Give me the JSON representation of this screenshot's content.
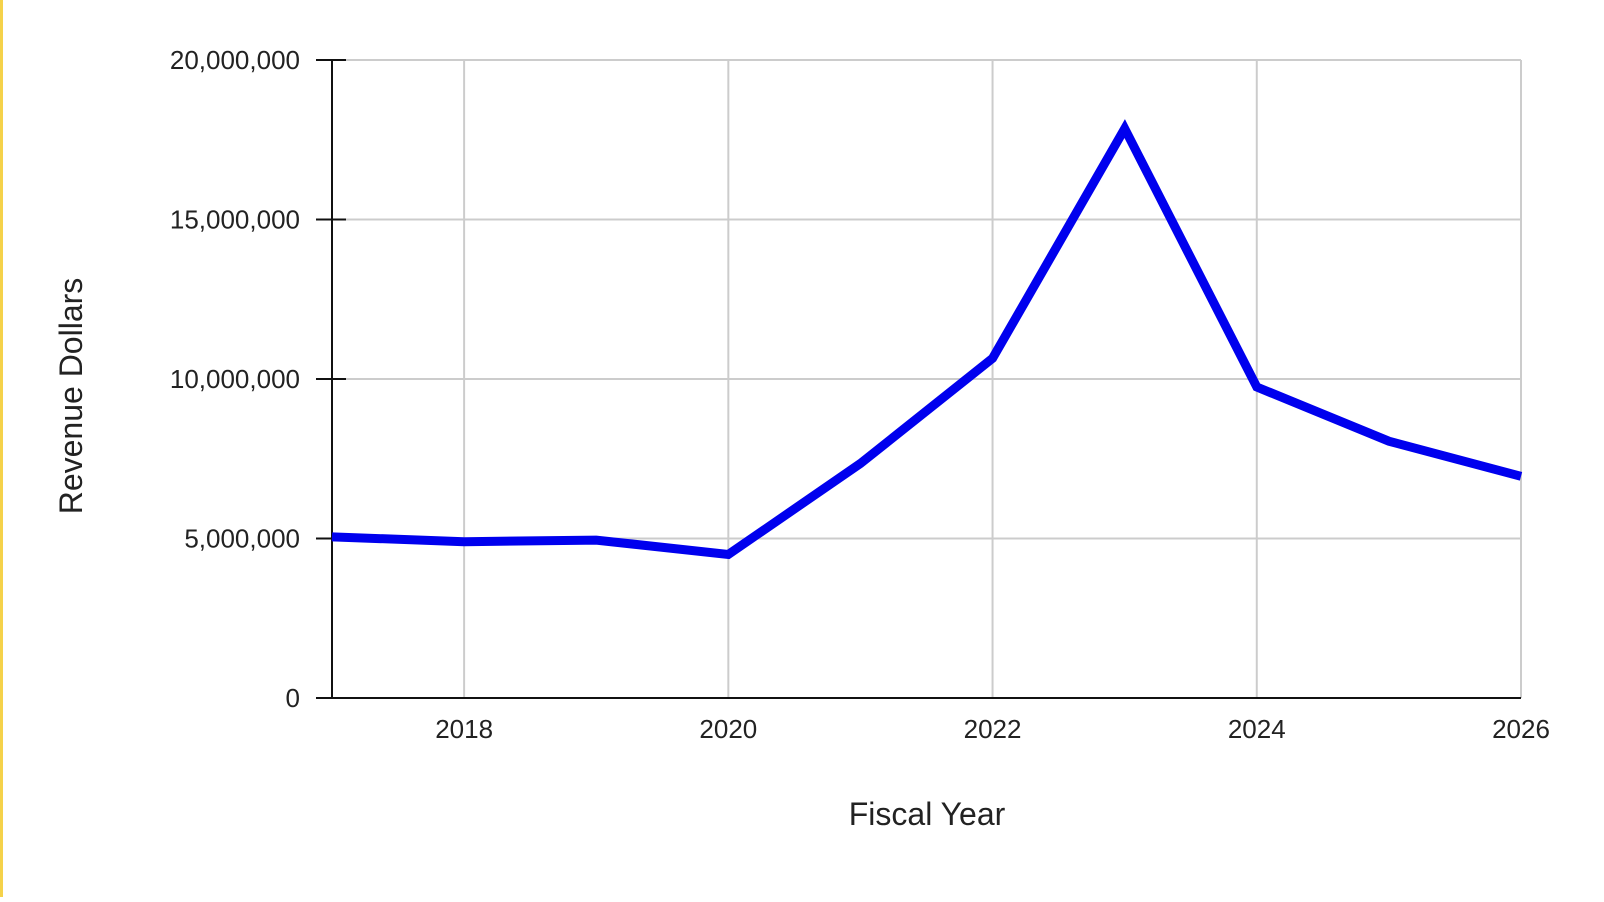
{
  "colors": {
    "series": "#0000ee",
    "grid": "#cccccc",
    "axis": "#111111",
    "text": "#222222",
    "left_edge": "#f5d24a"
  },
  "chart_data": {
    "type": "line",
    "title": "",
    "xlabel": "Fiscal Year",
    "ylabel": "Revenue Dollars",
    "xlim": [
      2017,
      2026
    ],
    "ylim": [
      0,
      20000000
    ],
    "x_ticks": [
      2018,
      2020,
      2022,
      2024,
      2026
    ],
    "x_tick_labels": [
      "2018",
      "2020",
      "2022",
      "2024",
      "2026"
    ],
    "y_ticks": [
      0,
      5000000,
      10000000,
      15000000,
      20000000
    ],
    "y_tick_labels": [
      "0",
      "5,000,000",
      "10,000,000",
      "15,000,000",
      "20,000,000"
    ],
    "x_grid_values": [
      2018,
      2020,
      2022,
      2024,
      2026
    ],
    "grid": true,
    "legend": "none",
    "series": [
      {
        "x": [
          2017,
          2018,
          2019,
          2020,
          2021,
          2022,
          2023,
          2024,
          2025,
          2026
        ],
        "values": [
          5050000,
          4900000,
          4950000,
          4500000,
          7350000,
          10650000,
          17850000,
          9750000,
          8050000,
          6950000
        ]
      }
    ]
  }
}
